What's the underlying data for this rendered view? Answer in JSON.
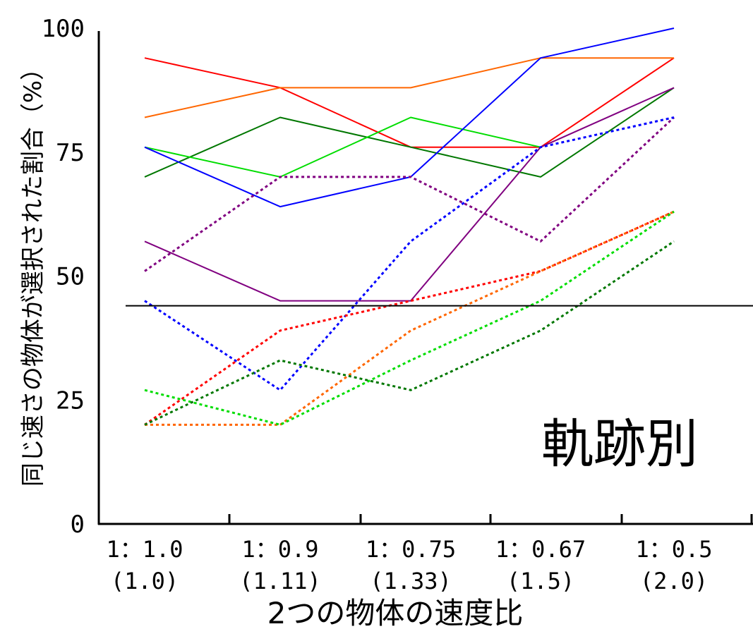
{
  "chart_data": {
    "type": "line",
    "categories": [
      "1：1.0",
      "1：0.9",
      "1：0.75",
      "1：0.67",
      "1：0.5"
    ],
    "category_sublabels": [
      "(1.0)",
      "(1.11)",
      "(1.33)",
      "(1.5)",
      "(2.0)"
    ],
    "xlabel": "2つの物体の速度比",
    "ylabel": "同じ速さの物体が選択された割合（%）",
    "yticks": [
      0,
      25,
      50,
      75,
      100
    ],
    "ylim": [
      0,
      100
    ],
    "grid": false,
    "legend": "none",
    "annotation": "軌跡別",
    "reference_line": {
      "y": 44
    },
    "series": [
      {
        "color": "#ff0000",
        "style": "solid",
        "values": [
          94,
          88,
          76,
          76,
          94
        ]
      },
      {
        "color": "#ff6600",
        "style": "solid",
        "values": [
          82,
          88,
          88,
          94,
          94
        ]
      },
      {
        "color": "#007700",
        "style": "solid",
        "values": [
          70,
          82,
          76,
          70,
          88
        ]
      },
      {
        "color": "#00dd00",
        "style": "solid",
        "values": [
          76,
          70,
          82,
          76,
          null
        ]
      },
      {
        "color": "#0000ff",
        "style": "solid",
        "values": [
          76,
          64,
          70,
          94,
          100
        ]
      },
      {
        "color": "#800080",
        "style": "solid",
        "values": [
          57,
          45,
          45,
          76,
          88
        ]
      },
      {
        "color": "#800080",
        "style": "dotted",
        "values": [
          51,
          70,
          70,
          57,
          82
        ]
      },
      {
        "color": "#0000ff",
        "style": "dotted",
        "values": [
          45,
          27,
          57,
          76,
          82
        ]
      },
      {
        "color": "#ff0000",
        "style": "dotted",
        "values": [
          20,
          39,
          45,
          51,
          63
        ]
      },
      {
        "color": "#ff6600",
        "style": "dotted",
        "values": [
          20,
          20,
          39,
          51,
          63
        ]
      },
      {
        "color": "#00dd00",
        "style": "dotted",
        "values": [
          27,
          20,
          33,
          45,
          63
        ]
      },
      {
        "color": "#007700",
        "style": "dotted",
        "values": [
          20,
          33,
          27,
          39,
          57
        ]
      }
    ]
  }
}
